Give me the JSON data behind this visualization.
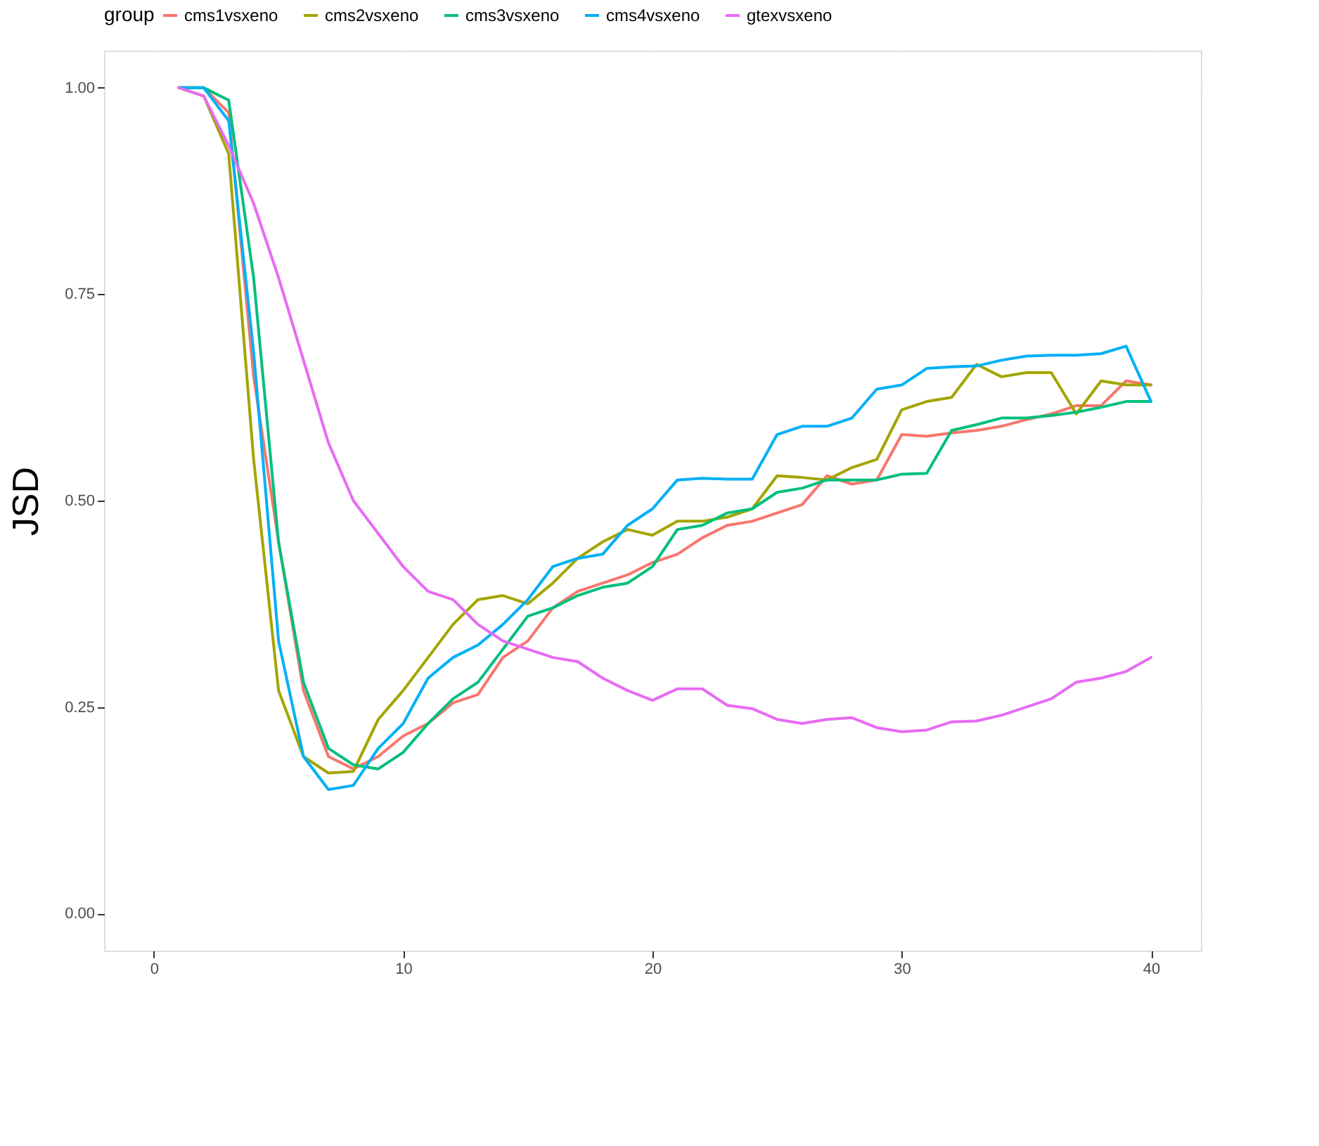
{
  "chart_data": {
    "type": "line",
    "ylabel": "JSD",
    "legend_title": "group",
    "legend": "top",
    "grid": true,
    "line_style": "solid",
    "xlim": [
      -2,
      42
    ],
    "xticks": [
      0,
      10,
      20,
      30,
      40
    ],
    "ylim": [
      -0.045,
      1.045
    ],
    "yticks": [
      {
        "value": 0,
        "label": "0.00"
      },
      {
        "value": 0.25,
        "label": "0.25"
      },
      {
        "value": 0.5,
        "label": "0.50"
      },
      {
        "value": 0.75,
        "label": "0.75"
      },
      {
        "value": 1,
        "label": "1.00"
      }
    ],
    "x": [
      1,
      2,
      3,
      4,
      5,
      6,
      7,
      8,
      9,
      10,
      11,
      12,
      13,
      14,
      15,
      16,
      17,
      18,
      19,
      20,
      21,
      22,
      23,
      24,
      25,
      26,
      27,
      28,
      29,
      30,
      31,
      32,
      33,
      34,
      35,
      36,
      37,
      38,
      39,
      40
    ],
    "series": [
      {
        "name": "cms1vsxeno",
        "color": "#f8766d",
        "values": [
          1.0,
          1.0,
          0.97,
          0.65,
          0.45,
          0.27,
          0.19,
          0.175,
          0.19,
          0.215,
          0.23,
          0.255,
          0.265,
          0.31,
          0.33,
          0.37,
          0.39,
          0.4,
          0.41,
          0.425,
          0.435,
          0.455,
          0.47,
          0.475,
          0.485,
          0.495,
          0.53,
          0.52,
          0.525,
          0.58,
          0.578,
          0.582,
          0.585,
          0.59,
          0.598,
          0.605,
          0.615,
          0.615,
          0.645,
          0.64
        ]
      },
      {
        "name": "cms2vsxeno",
        "color": "#a3a500",
        "values": [
          1.0,
          0.99,
          0.92,
          0.55,
          0.27,
          0.19,
          0.17,
          0.172,
          0.235,
          0.27,
          0.31,
          0.35,
          0.38,
          0.385,
          0.375,
          0.4,
          0.43,
          0.45,
          0.465,
          0.458,
          0.475,
          0.475,
          0.48,
          0.49,
          0.53,
          0.528,
          0.525,
          0.54,
          0.55,
          0.61,
          0.62,
          0.625,
          0.665,
          0.65,
          0.655,
          0.655,
          0.605,
          0.645,
          0.64,
          0.64
        ]
      },
      {
        "name": "cms3vsxeno",
        "color": "#00bf7d",
        "values": [
          1.0,
          1.0,
          0.985,
          0.77,
          0.45,
          0.28,
          0.2,
          0.18,
          0.175,
          0.195,
          0.23,
          0.26,
          0.28,
          0.32,
          0.36,
          0.37,
          0.385,
          0.395,
          0.4,
          0.42,
          0.465,
          0.47,
          0.485,
          0.49,
          0.51,
          0.515,
          0.525,
          0.525,
          0.525,
          0.532,
          0.533,
          0.585,
          0.592,
          0.6,
          0.6,
          0.603,
          0.607,
          0.613,
          0.62,
          0.62
        ]
      },
      {
        "name": "cms4vsxeno",
        "color": "#00b0f6",
        "values": [
          1.0,
          1.0,
          0.96,
          0.68,
          0.33,
          0.19,
          0.15,
          0.155,
          0.2,
          0.23,
          0.285,
          0.31,
          0.325,
          0.35,
          0.38,
          0.42,
          0.43,
          0.435,
          0.47,
          0.49,
          0.525,
          0.527,
          0.526,
          0.526,
          0.58,
          0.59,
          0.59,
          0.6,
          0.635,
          0.64,
          0.66,
          0.662,
          0.663,
          0.67,
          0.675,
          0.676,
          0.676,
          0.678,
          0.687,
          0.62
        ]
      },
      {
        "name": "gtexvsxeno",
        "color": "#e76bf3",
        "values": [
          1.0,
          0.99,
          0.93,
          0.86,
          0.77,
          0.67,
          0.57,
          0.5,
          0.46,
          0.42,
          0.39,
          0.38,
          0.35,
          0.33,
          0.32,
          0.31,
          0.305,
          0.285,
          0.27,
          0.258,
          0.272,
          0.272,
          0.252,
          0.248,
          0.235,
          0.23,
          0.235,
          0.237,
          0.225,
          0.22,
          0.222,
          0.232,
          0.233,
          0.24,
          0.25,
          0.26,
          0.28,
          0.285,
          0.293,
          0.31
        ]
      }
    ]
  }
}
